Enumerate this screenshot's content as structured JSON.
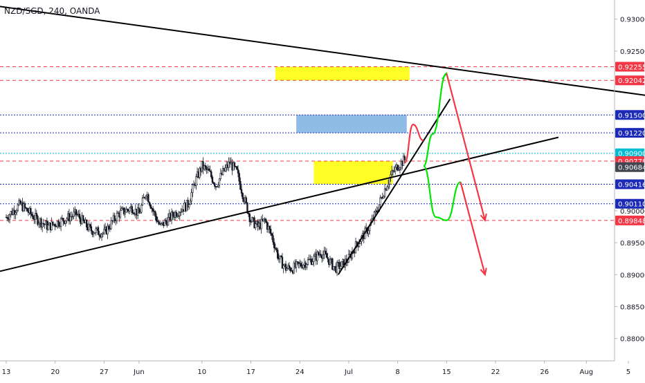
{
  "header": {
    "title": "NZD/SGD, 240, OANDA"
  },
  "chart_data": {
    "type": "candlestick",
    "title": "NZD/SGD, 240, OANDA",
    "y_axis": {
      "range": [
        0.8765,
        0.933
      ],
      "ticks": [
        "0.93000",
        "0.92500",
        "0.90000",
        "0.89500",
        "0.89000",
        "0.88500",
        "0.88000"
      ]
    },
    "x_axis": {
      "ticks": [
        {
          "label": "13",
          "day": 0
        },
        {
          "label": "20",
          "day": 7
        },
        {
          "label": "27",
          "day": 14
        },
        {
          "label": "Jun",
          "day": 19
        },
        {
          "label": "10",
          "day": 28
        },
        {
          "label": "17",
          "day": 35
        },
        {
          "label": "24",
          "day": 42
        },
        {
          "label": "Jul",
          "day": 49
        },
        {
          "label": "8",
          "day": 56
        },
        {
          "label": "15",
          "day": 63
        },
        {
          "label": "22",
          "day": 70
        },
        {
          "label": "26",
          "day": 77
        },
        {
          "label": "Aug",
          "day": 83
        },
        {
          "label": "5",
          "day": 89
        }
      ]
    },
    "price_labels": [
      {
        "value": 0.92255,
        "text": "0.92255",
        "color": "#f23645"
      },
      {
        "value": 0.92042,
        "text": "0.92042",
        "color": "#f23645"
      },
      {
        "value": 0.915,
        "text": "0.91500",
        "color": "#1c2ab8"
      },
      {
        "value": 0.9122,
        "text": "0.91220",
        "color": "#1c2ab8"
      },
      {
        "value": 0.909,
        "text": "0.90900",
        "color": "#00bcd4"
      },
      {
        "value": 0.90778,
        "text": "0.90778",
        "color": "#f23645"
      },
      {
        "value": 0.90684,
        "text": "0.90684",
        "color": "#434651"
      },
      {
        "value": 0.90416,
        "text": "0.90416",
        "color": "#1c2ab8"
      },
      {
        "value": 0.9011,
        "text": "0.90110",
        "color": "#1c2ab8"
      },
      {
        "value": 0.89848,
        "text": "0.89848",
        "color": "#f23645"
      }
    ],
    "zones": [
      {
        "color": "#ffff00",
        "day_from": 38.5,
        "day_to": 57.7,
        "price_from": 0.92255,
        "price_to": 0.92042
      },
      {
        "color": "#7ab0e0",
        "day_from": 41.5,
        "day_to": 57.3,
        "price_from": 0.915,
        "price_to": 0.9122
      },
      {
        "color": "#ffff00",
        "day_from": 44.0,
        "day_to": 55.3,
        "price_from": 0.90778,
        "price_to": 0.90416
      }
    ],
    "close_path": [
      [
        0,
        0.899
      ],
      [
        2,
        0.901
      ],
      [
        4,
        0.899
      ],
      [
        6,
        0.8975
      ],
      [
        8,
        0.8985
      ],
      [
        10,
        0.8995
      ],
      [
        12,
        0.897
      ],
      [
        14,
        0.8965
      ],
      [
        16,
        0.8995
      ],
      [
        18,
        0.9005
      ],
      [
        19,
        0.8995
      ],
      [
        20,
        0.903
      ],
      [
        21,
        0.9
      ],
      [
        22,
        0.8975
      ],
      [
        24,
        0.8995
      ],
      [
        26,
        0.901
      ],
      [
        27,
        0.9045
      ],
      [
        28,
        0.907
      ],
      [
        29,
        0.906
      ],
      [
        30,
        0.904
      ],
      [
        31,
        0.906
      ],
      [
        32,
        0.9075
      ],
      [
        33,
        0.906
      ],
      [
        34,
        0.902
      ],
      [
        35,
        0.8985
      ],
      [
        36,
        0.8975
      ],
      [
        37,
        0.8985
      ],
      [
        38,
        0.896
      ],
      [
        39,
        0.8925
      ],
      [
        40,
        0.891
      ],
      [
        41,
        0.891
      ],
      [
        42,
        0.8915
      ],
      [
        43,
        0.892
      ],
      [
        44,
        0.8925
      ],
      [
        45,
        0.8935
      ],
      [
        46,
        0.8925
      ],
      [
        47,
        0.891
      ],
      [
        48,
        0.8915
      ],
      [
        49,
        0.8925
      ],
      [
        50,
        0.8945
      ],
      [
        51,
        0.896
      ],
      [
        52,
        0.8975
      ],
      [
        53,
        0.9
      ],
      [
        54,
        0.903
      ],
      [
        55,
        0.9055
      ],
      [
        56,
        0.907
      ],
      [
        57,
        0.908
      ]
    ],
    "trend_lines": [
      {
        "color": "#000000",
        "from": [
          -1,
          0.932
        ],
        "to": [
          92,
          0.918
        ]
      },
      {
        "color": "#000000",
        "from": [
          -1,
          0.8905
        ],
        "to": [
          79,
          0.9115
        ]
      },
      {
        "color": "#000000",
        "from": [
          47.5,
          0.89
        ],
        "to": [
          63.5,
          0.9175
        ]
      }
    ],
    "projections": [
      {
        "color": "#f23645",
        "points": [
          [
            57.0,
            0.9075
          ],
          [
            58.2,
            0.9135
          ],
          [
            59.7,
            0.911
          ]
        ]
      },
      {
        "color": "#00e600",
        "points": [
          [
            59.7,
            0.907
          ],
          [
            61.0,
            0.912
          ],
          [
            63.0,
            0.9215
          ]
        ]
      },
      {
        "color": "#00e600",
        "points": [
          [
            59.7,
            0.907
          ],
          [
            61.5,
            0.899
          ],
          [
            63.0,
            0.8985
          ],
          [
            65.0,
            0.9045
          ]
        ]
      },
      {
        "color": "#f23645",
        "points": [
          [
            63.0,
            0.9215
          ],
          [
            68.5,
            0.8985
          ]
        ]
      },
      {
        "color": "#f23645",
        "points": [
          [
            65.0,
            0.9045
          ],
          [
            68.5,
            0.89
          ]
        ]
      }
    ]
  }
}
